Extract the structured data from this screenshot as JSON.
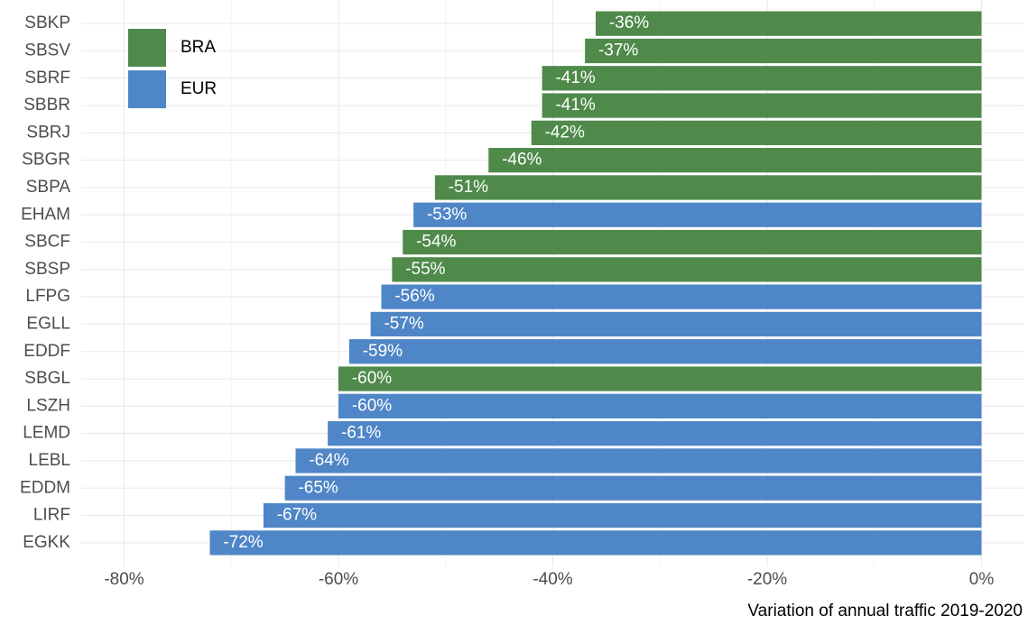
{
  "chart_data": {
    "type": "barh",
    "categories": [
      "SBKP",
      "SBSV",
      "SBRF",
      "SBBR",
      "SBRJ",
      "SBGR",
      "SBPA",
      "EHAM",
      "SBCF",
      "SBSP",
      "LFPG",
      "EGLL",
      "EDDF",
      "SBGL",
      "LSZH",
      "LEMD",
      "LEBL",
      "EDDM",
      "LIRF",
      "EGKK"
    ],
    "series": [
      {
        "name": "BRA",
        "color": "#4f8a4b",
        "values": [
          -36,
          -37,
          -41,
          -41,
          -42,
          -46,
          -51,
          null,
          -54,
          -55,
          null,
          null,
          null,
          -60,
          null,
          null,
          null,
          null,
          null,
          null
        ],
        "value_labels": [
          "-36%",
          "-37%",
          "-41%",
          "-41%",
          "-42%",
          "-46%",
          "-51%",
          null,
          "-54%",
          "-55%",
          null,
          null,
          null,
          "-60%",
          null,
          null,
          null,
          null,
          null,
          null
        ]
      },
      {
        "name": "EUR",
        "color": "#4f86c7",
        "values": [
          null,
          null,
          null,
          null,
          null,
          null,
          null,
          -53,
          null,
          null,
          -56,
          -57,
          -59,
          null,
          -60,
          -61,
          -64,
          -65,
          -67,
          -72
        ],
        "value_labels": [
          null,
          null,
          null,
          null,
          null,
          null,
          null,
          "-53%",
          null,
          null,
          "-56%",
          "-57%",
          "-59%",
          null,
          "-60%",
          "-61%",
          "-64%",
          "-65%",
          "-67%",
          "-72%"
        ]
      }
    ],
    "xlabel": "Variation of annual traffic 2019-2020",
    "xlim": [
      -84,
      4
    ],
    "xticks": [
      {
        "value": -80,
        "label": "-80%"
      },
      {
        "value": -60,
        "label": "-60%"
      },
      {
        "value": -40,
        "label": "-40%"
      },
      {
        "value": -20,
        "label": "-20%"
      },
      {
        "value": 0,
        "label": "0%"
      }
    ],
    "grid": true,
    "legend": "top-left"
  }
}
